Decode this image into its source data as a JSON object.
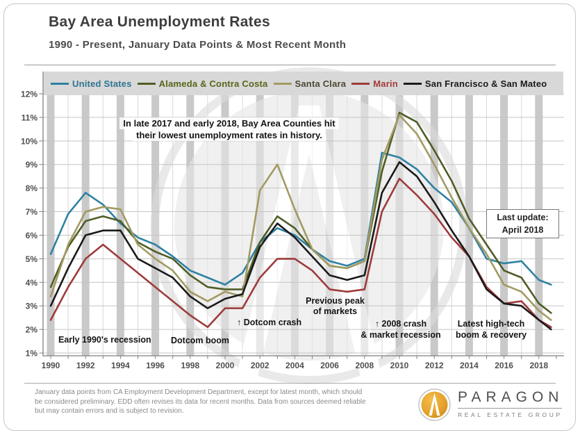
{
  "header": {
    "title": "Bay Area Unemployment Rates",
    "subtitle": "1990 - Present, January Data Points & Most Recent Month"
  },
  "chart_data": {
    "type": "line",
    "title": "Bay Area Unemployment Rates",
    "ylabel": "",
    "xlabel": "",
    "ylim": [
      1,
      12
    ],
    "grid": "horizontal lines each 1%, gray vertical bands at even years",
    "legend_position": "top strip",
    "x_years": [
      1990,
      1991,
      1992,
      1993,
      1994,
      1995,
      1996,
      1997,
      1998,
      1999,
      2000,
      2001,
      2002,
      2003,
      2004,
      2005,
      2006,
      2007,
      2008,
      2009,
      2010,
      2011,
      2012,
      2013,
      2014,
      2015,
      2016,
      2017,
      2018,
      2018.7
    ],
    "x_ticks": {
      "labels": [
        "1990",
        "1992",
        "1994",
        "1996",
        "1998",
        "2000",
        "2002",
        "2004",
        "2006",
        "2008",
        "2010",
        "2012",
        "2014",
        "2016",
        "2018"
      ],
      "values": [
        1990,
        1992,
        1994,
        1996,
        1998,
        2000,
        2002,
        2004,
        2006,
        2008,
        2010,
        2012,
        2014,
        2016,
        2018
      ]
    },
    "y_ticks": {
      "labels": [
        "12%",
        "11%",
        "10%",
        "9%",
        "8%",
        "7%",
        "6%",
        "5%",
        "4%",
        "3%",
        "2%",
        "1%"
      ],
      "values": [
        12,
        11,
        10,
        9,
        8,
        7,
        6,
        5,
        4,
        3,
        2,
        1
      ]
    },
    "style": {
      "band_color": "#c9c9c9",
      "vgrid_color": "#d8d8d8",
      "hgrid_color": "#c4c4c4",
      "axis_color": "#7f7f7f"
    },
    "series": [
      {
        "id": "united-states",
        "name": "United States",
        "color": "#2E81A2",
        "label_color": "#2E7492",
        "values": [
          5.2,
          6.9,
          7.8,
          7.3,
          6.5,
          5.9,
          5.6,
          5.1,
          4.5,
          4.2,
          3.9,
          4.4,
          5.7,
          6.3,
          6.0,
          5.4,
          4.9,
          4.7,
          5.0,
          9.5,
          9.3,
          8.8,
          8.0,
          7.4,
          6.3,
          5.0,
          4.8,
          4.9,
          4.1,
          3.9
        ]
      },
      {
        "id": "alameda-contra-costa",
        "name": "Alameda & Contra Costa",
        "color": "#4F5D25",
        "label_color": "#566618",
        "values": [
          3.8,
          5.5,
          6.6,
          6.8,
          6.6,
          5.7,
          5.3,
          5.0,
          4.3,
          3.8,
          3.7,
          3.7,
          5.7,
          6.8,
          6.3,
          5.4,
          4.7,
          4.6,
          4.9,
          8.7,
          11.2,
          10.8,
          9.6,
          8.3,
          6.7,
          5.6,
          4.5,
          4.2,
          3.1,
          2.7
        ]
      },
      {
        "id": "santa-clara",
        "name": "Santa Clara",
        "color": "#A29A62",
        "label_color": "#4d4936",
        "values": [
          3.4,
          5.6,
          7.0,
          7.2,
          7.1,
          5.6,
          5.0,
          4.5,
          3.6,
          3.2,
          3.6,
          3.4,
          7.9,
          9.0,
          7.1,
          5.4,
          4.7,
          4.6,
          4.9,
          9.2,
          11.1,
          10.3,
          9.0,
          7.6,
          6.3,
          5.2,
          3.9,
          3.6,
          2.8,
          2.4
        ]
      },
      {
        "id": "marin",
        "name": "Marin",
        "color": "#9D3B3B",
        "label_color": "#A43B3B",
        "values": [
          2.4,
          3.8,
          5.0,
          5.6,
          5.0,
          4.4,
          3.8,
          3.2,
          2.6,
          2.1,
          2.9,
          2.9,
          4.2,
          5.0,
          5.0,
          4.5,
          3.7,
          3.6,
          3.7,
          7.0,
          8.4,
          7.7,
          6.9,
          5.9,
          5.1,
          3.8,
          3.1,
          3.2,
          2.4,
          2.1
        ]
      },
      {
        "id": "san-francisco-san-mateo",
        "name": "San Francisco & San Mateo",
        "color": "#1A1A1A",
        "label_color": "#1a1a1a",
        "values": [
          3.0,
          4.6,
          6.0,
          6.2,
          6.2,
          5.0,
          4.6,
          4.2,
          3.4,
          2.9,
          3.3,
          3.5,
          5.5,
          6.5,
          5.9,
          5.1,
          4.3,
          4.1,
          4.3,
          7.8,
          9.1,
          8.5,
          7.4,
          6.2,
          5.1,
          3.7,
          3.1,
          3.0,
          2.4,
          2.0
        ]
      }
    ]
  },
  "annotations": {
    "history_note_line1": "In late 2017 and early 2018, Bay Area Counties hit",
    "history_note_line2": "their lowest unemployment rates in history.",
    "last_update_line1": "Last update:",
    "last_update_line2": "April 2018",
    "early_90s": "Early 1990's recession",
    "dotcom_boom": "Dotcom boom",
    "dotcom_crash": "↑ Dotcom crash",
    "prev_peak_line1": "Previous peak",
    "prev_peak_line2": "of  markets",
    "crash_2008_line1": "↑ 2008 crash",
    "crash_2008_line2": "& market recession",
    "hightech_line1": "Latest high-tech",
    "hightech_line2": "boom & recovery"
  },
  "footer": {
    "disclaimer_line1": "January data points from CA Employment Development Department, except for latest month, which should",
    "disclaimer_line2": "be considered preliminary. EDD often revises its data for recent months. Data from sources deemed reliable",
    "disclaimer_line3": "but may contain errors and is subject to revision.",
    "logo_name": "PARAGON",
    "logo_tagline": "REAL ESTATE GROUP",
    "logo_gold": "#e8a62f"
  }
}
